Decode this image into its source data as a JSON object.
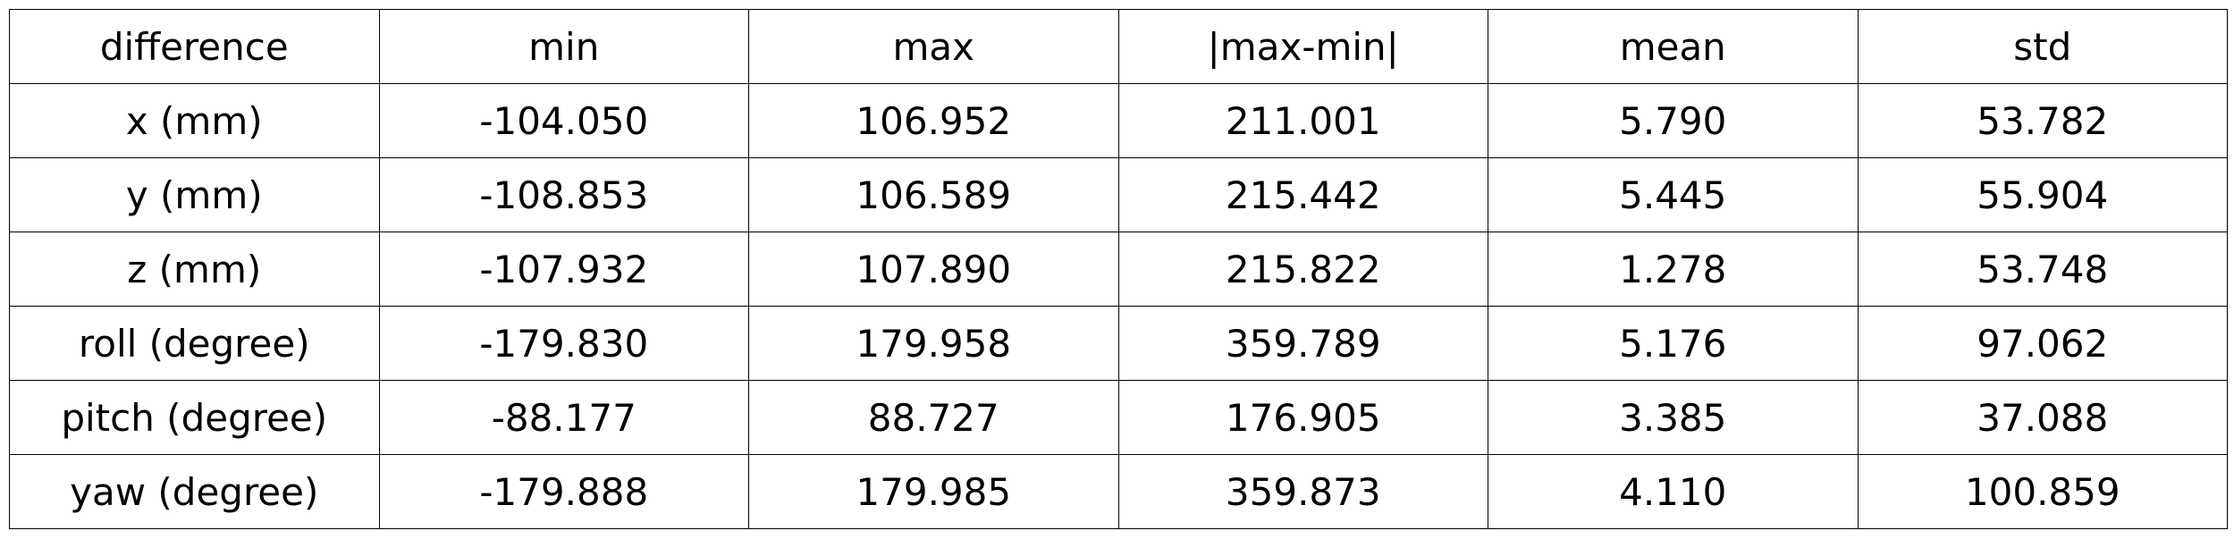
{
  "chart_data": {
    "type": "table",
    "columns": [
      "difference",
      "min",
      "max",
      "|max-min|",
      "mean",
      "std"
    ],
    "rows": [
      [
        "x (mm)",
        "-104.050",
        "106.952",
        "211.001",
        "5.790",
        "53.782"
      ],
      [
        "y (mm)",
        "-108.853",
        "106.589",
        "215.442",
        "5.445",
        "55.904"
      ],
      [
        "z (mm)",
        "-107.932",
        "107.890",
        "215.822",
        "1.278",
        "53.748"
      ],
      [
        "roll (degree)",
        "-179.830",
        "179.958",
        "359.789",
        "5.176",
        "97.062"
      ],
      [
        "pitch (degree)",
        "-88.177",
        "88.727",
        "176.905",
        "3.385",
        "37.088"
      ],
      [
        "yaw (degree)",
        "-179.888",
        "179.985",
        "359.873",
        "4.110",
        "100.859"
      ]
    ]
  }
}
